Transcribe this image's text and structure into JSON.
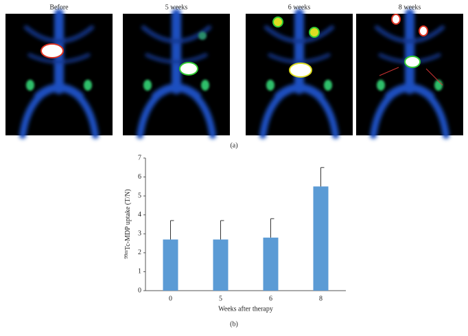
{
  "figure": {
    "images": [
      {
        "label": "Before"
      },
      {
        "label": "5 weeks"
      },
      {
        "label": "6 weeks"
      },
      {
        "label": "8 weeks"
      }
    ],
    "panel_a_label": "(a)",
    "panel_b_label": "(b)"
  },
  "chart_data": {
    "type": "bar",
    "categories": [
      "0",
      "5",
      "6",
      "8"
    ],
    "values": [
      2.7,
      2.7,
      2.8,
      5.5
    ],
    "errors": [
      1.0,
      1.0,
      1.0,
      1.0
    ],
    "color": "#5b9bd5",
    "xlabel": "Weeks after therapy",
    "ylabel_superscript": "99m",
    "ylabel": "Tc-MDP uptake (T/N)",
    "ylim": [
      0,
      7
    ],
    "yticks": [
      0,
      1,
      2,
      3,
      4,
      5,
      6,
      7
    ],
    "grid": false
  }
}
